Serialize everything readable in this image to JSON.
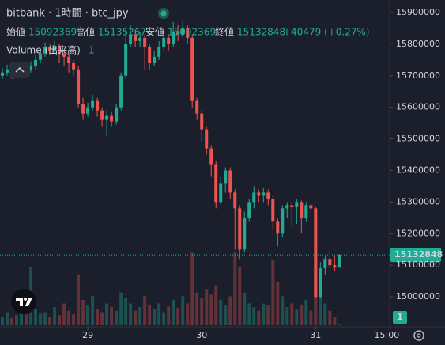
{
  "chart_data": {
    "type": "candlestick",
    "title": "bitbank · 1時間 · btc_jpy",
    "ohlc_labels": [
      "始値",
      "高値",
      "安値",
      "終値"
    ],
    "change": "+40479 (+0.27%)",
    "volume_label": "Volume (出来高)",
    "up_color": "#22ab94",
    "down_color": "#ef5350",
    "open": [
      15700000,
      15710000,
      15720000,
      15705000,
      15715000,
      15725000,
      15718000,
      15730000,
      15750000,
      15770000,
      15790000,
      15780000,
      15795000,
      15770000,
      15760000,
      15740000,
      15720000,
      15610000,
      15580000,
      15600000,
      15620000,
      15590000,
      15560000,
      15575000,
      15555000,
      15600000,
      15700000,
      15800000,
      15830000,
      15810000,
      15820000,
      15790000,
      15740000,
      15760000,
      15790000,
      15820000,
      15800000,
      15840000,
      15830000,
      15850000,
      15820000,
      15620000,
      15580000,
      15530000,
      15470000,
      15420000,
      15300000,
      15360000,
      15400000,
      15330000,
      15280000,
      15150000,
      15250000,
      15300000,
      15330000,
      15320000,
      15330000,
      15310000,
      15240000,
      15200000,
      15280000,
      15290000,
      15285000,
      15300000,
      15250000,
      15290000,
      15280000,
      15000000,
      15090000,
      15120000,
      15100000,
      15092369
    ],
    "high": [
      15725000,
      15735000,
      15730000,
      15728000,
      15740000,
      15735000,
      15745000,
      15765000,
      15785000,
      15805000,
      15800000,
      15810000,
      15800000,
      15780000,
      15770000,
      15750000,
      15730000,
      15630000,
      15615000,
      15640000,
      15630000,
      15600000,
      15590000,
      15585000,
      15610000,
      15710000,
      15850000,
      15860000,
      15845000,
      15840000,
      15830000,
      15800000,
      15780000,
      15810000,
      15840000,
      15830000,
      15870000,
      15860000,
      15875000,
      15860000,
      15830000,
      15630000,
      15590000,
      15540000,
      15480000,
      15430000,
      15380000,
      15410000,
      15410000,
      15340000,
      15290000,
      15270000,
      15310000,
      15350000,
      15340000,
      15345000,
      15340000,
      15320000,
      15250000,
      15290000,
      15300000,
      15300000,
      15310000,
      15305000,
      15300000,
      15295000,
      15285000,
      15110000,
      15130000,
      15145000,
      15130000,
      15135267
    ],
    "low": [
      15690000,
      15700000,
      15690000,
      15695000,
      15705000,
      15700000,
      15710000,
      15720000,
      15740000,
      15760000,
      15765000,
      15770000,
      15740000,
      15730000,
      15710000,
      15700000,
      15600000,
      15560000,
      15570000,
      15590000,
      15570000,
      15540000,
      15510000,
      15540000,
      15545000,
      15590000,
      15690000,
      15790000,
      15790000,
      15790000,
      15720000,
      15720000,
      15730000,
      15750000,
      15780000,
      15780000,
      15790000,
      15810000,
      15820000,
      15800000,
      15600000,
      15560000,
      15490000,
      15450000,
      15380000,
      15280000,
      15290000,
      15330000,
      15310000,
      15150000,
      15120000,
      15140000,
      15240000,
      15280000,
      15300000,
      15300000,
      15290000,
      15210000,
      15160000,
      15190000,
      15250000,
      15220000,
      15230000,
      15200000,
      15240000,
      15270000,
      14995000,
      14995000,
      15070000,
      15090000,
      15080000,
      15092369
    ],
    "close": [
      15710000,
      15720000,
      15705000,
      15715000,
      15725000,
      15718000,
      15730000,
      15750000,
      15770000,
      15790000,
      15780000,
      15795000,
      15770000,
      15760000,
      15740000,
      15720000,
      15610000,
      15580000,
      15600000,
      15620000,
      15590000,
      15560000,
      15575000,
      15555000,
      15600000,
      15700000,
      15800000,
      15830000,
      15810000,
      15820000,
      15790000,
      15740000,
      15760000,
      15790000,
      15820000,
      15800000,
      15840000,
      15830000,
      15850000,
      15820000,
      15620000,
      15580000,
      15530000,
      15470000,
      15420000,
      15300000,
      15360000,
      15400000,
      15330000,
      15280000,
      15150000,
      15250000,
      15300000,
      15330000,
      15320000,
      15330000,
      15310000,
      15240000,
      15200000,
      15280000,
      15290000,
      15285000,
      15300000,
      15250000,
      15290000,
      15280000,
      15000000,
      15090000,
      15120000,
      15100000,
      15092369,
      15132848
    ],
    "volume": [
      12,
      18,
      10,
      14,
      20,
      15,
      80,
      22,
      16,
      18,
      12,
      25,
      14,
      30,
      20,
      15,
      70,
      35,
      28,
      40,
      22,
      18,
      30,
      25,
      20,
      45,
      38,
      30,
      20,
      25,
      40,
      28,
      22,
      30,
      18,
      26,
      35,
      24,
      40,
      30,
      100,
      45,
      38,
      50,
      42,
      55,
      35,
      28,
      40,
      100,
      80,
      45,
      30,
      25,
      20,
      30,
      28,
      90,
      60,
      40,
      25,
      30,
      22,
      28,
      35,
      20,
      85,
      50,
      30,
      20,
      12,
      1
    ],
    "ylim": [
      14905000,
      15940000
    ],
    "yticks": [
      15000000,
      15100000,
      15200000,
      15300000,
      15400000,
      15500000,
      15600000,
      15700000,
      15800000,
      15900000
    ],
    "xlim": [
      -0.5,
      81.6
    ],
    "xticks": [
      {
        "value": 18,
        "label": "29"
      },
      {
        "value": 42,
        "label": "30"
      },
      {
        "value": 66,
        "label": "31"
      },
      {
        "value": 81,
        "label": "15:00"
      }
    ],
    "vlim": [
      0,
      120
    ]
  }
}
